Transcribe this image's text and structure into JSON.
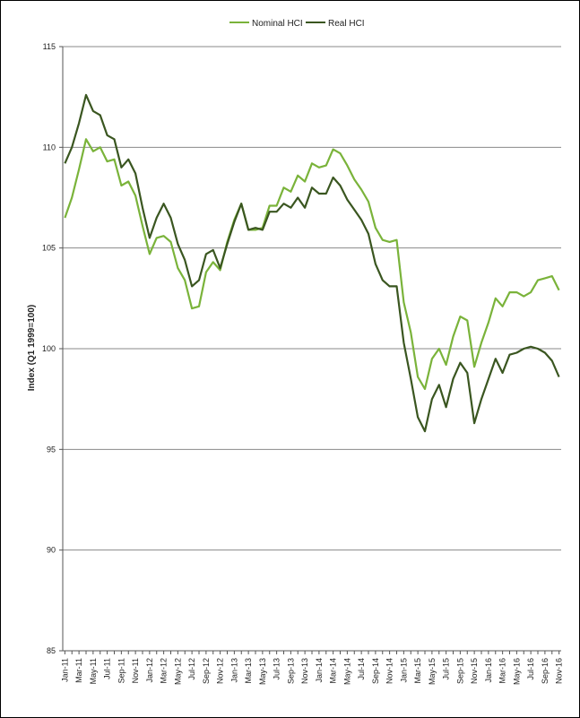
{
  "chart_data": {
    "type": "line",
    "title": "",
    "xlabel": "",
    "ylabel": "Index (Q1 1999=100)",
    "ylim": [
      85,
      115
    ],
    "yticks": [
      85,
      90,
      95,
      100,
      105,
      110,
      115
    ],
    "grid": true,
    "legend_position": "top-center",
    "x_tick_labels": [
      "Jan-11",
      "Mar-11",
      "May-11",
      "Jul-11",
      "Sep-11",
      "Nov-11",
      "Jan-12",
      "Mar-12",
      "May-12",
      "Jul-12",
      "Sep-12",
      "Nov-12",
      "Jan-13",
      "Mar-13",
      "May-13",
      "Jul-13",
      "Sep-13",
      "Nov-13",
      "Jan-14",
      "Mar-14",
      "May-14",
      "Jul-14",
      "Sep-14",
      "Nov-14",
      "Jan-15",
      "Mar-15",
      "May-15",
      "Jul-15",
      "Sep-15",
      "Nov-15",
      "Jan-16",
      "Mar-16",
      "May-16",
      "Jul-16",
      "Sep-16",
      "Nov-16"
    ],
    "series": [
      {
        "name": "Nominal HCI",
        "color": "#7ab33a",
        "values": [
          106.5,
          107.5,
          108.9,
          110.4,
          109.8,
          110.0,
          109.3,
          109.4,
          108.1,
          108.3,
          107.6,
          106.1,
          104.7,
          105.5,
          105.6,
          105.3,
          104.0,
          103.4,
          102.0,
          102.1,
          103.8,
          104.3,
          103.9,
          105.3,
          106.4,
          107.2,
          105.9,
          105.9,
          106.0,
          107.1,
          107.1,
          108.0,
          107.8,
          108.6,
          108.3,
          109.2,
          109.0,
          109.1,
          109.9,
          109.7,
          109.1,
          108.4,
          107.9,
          107.3,
          106.0,
          105.4,
          105.3,
          105.4,
          102.3,
          100.8,
          98.6,
          98.0,
          99.5,
          100.0,
          99.2,
          100.6,
          101.6,
          101.4,
          99.1,
          100.3,
          101.3,
          102.5,
          102.1,
          102.8,
          102.8,
          102.6,
          102.8,
          103.4,
          103.5,
          103.6,
          102.9
        ]
      },
      {
        "name": "Real HCI",
        "color": "#3a5620",
        "values": [
          109.2,
          110.0,
          111.2,
          112.6,
          111.8,
          111.6,
          110.6,
          110.4,
          109.0,
          109.4,
          108.7,
          107.0,
          105.5,
          106.5,
          107.2,
          106.5,
          105.2,
          104.4,
          103.1,
          103.4,
          104.7,
          104.9,
          104.0,
          105.2,
          106.3,
          107.2,
          105.9,
          106.0,
          105.9,
          106.8,
          106.8,
          107.2,
          107.0,
          107.5,
          107.0,
          108.0,
          107.7,
          107.7,
          108.5,
          108.1,
          107.4,
          106.9,
          106.4,
          105.7,
          104.2,
          103.4,
          103.1,
          103.1,
          100.3,
          98.5,
          96.6,
          95.9,
          97.5,
          98.2,
          97.1,
          98.5,
          99.3,
          98.8,
          96.3,
          97.5,
          98.5,
          99.5,
          98.8,
          99.7,
          99.8,
          100.0,
          100.1,
          100.0,
          99.8,
          99.4,
          98.6
        ]
      }
    ]
  }
}
